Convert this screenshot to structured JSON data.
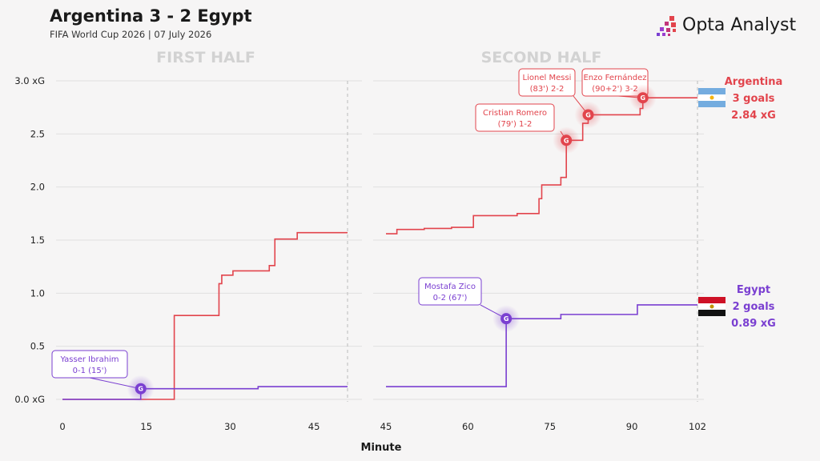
{
  "header": {
    "title": "Argentina 3 - 2 Egypt",
    "subtitle": "FIFA World Cup 2026 | 07 July 2026",
    "brand": "Opta Analyst"
  },
  "colors": {
    "argentina": "#e2444c",
    "egypt": "#7a3fd1",
    "grid": "#e0e0e0",
    "dashed": "#bbbbbb"
  },
  "chart_data": {
    "type": "line",
    "step": true,
    "grid": true,
    "xlabel": "Minute",
    "ylabel": "",
    "ylim": [
      0,
      3
    ],
    "yticks": [
      0,
      0.5,
      1,
      1.5,
      2,
      2.5,
      3
    ],
    "ytick_labels": [
      "0.0 xG",
      "0.5",
      "1.0",
      "1.5",
      "2.0",
      "2.5",
      "3.0 xG"
    ],
    "panels": [
      {
        "name": "FIRST HALF",
        "xlim": [
          0,
          51
        ],
        "xticks": [
          0,
          15,
          30,
          45
        ],
        "end_minute": 51
      },
      {
        "name": "SECOND HALF",
        "xlim": [
          45,
          102
        ],
        "xticks": [
          45,
          60,
          75,
          90,
          102
        ],
        "end_minute": 102
      }
    ],
    "series": [
      {
        "name": "Argentina",
        "goals_label": "3 goals",
        "xg_label": "2.84 xG",
        "first_half": [
          [
            0,
            0
          ],
          [
            20,
            0.79
          ],
          [
            28,
            1.09
          ],
          [
            28.5,
            1.17
          ],
          [
            30.5,
            1.21
          ],
          [
            37,
            1.26
          ],
          [
            38,
            1.51
          ],
          [
            42,
            1.57
          ],
          [
            51,
            1.57
          ]
        ],
        "second_half": [
          [
            45,
            1.56
          ],
          [
            47,
            1.6
          ],
          [
            52,
            1.61
          ],
          [
            57,
            1.62
          ],
          [
            61,
            1.73
          ],
          [
            69,
            1.75
          ],
          [
            73,
            1.89
          ],
          [
            73.5,
            2.02
          ],
          [
            77,
            2.09
          ],
          [
            78,
            2.44
          ],
          [
            80.5,
            2.44
          ],
          [
            81,
            2.6
          ],
          [
            82,
            2.68
          ],
          [
            91.5,
            2.74
          ],
          [
            92,
            2.84
          ],
          [
            102,
            2.84
          ]
        ]
      },
      {
        "name": "Egypt",
        "goals_label": "2 goals",
        "xg_label": "0.89 xG",
        "first_half": [
          [
            0,
            0
          ],
          [
            14,
            0
          ],
          [
            14,
            0.1
          ],
          [
            35,
            0.12
          ],
          [
            51,
            0.12
          ]
        ],
        "second_half": [
          [
            45,
            0.12
          ],
          [
            67,
            0.12
          ],
          [
            67,
            0.76
          ],
          [
            77,
            0.8
          ],
          [
            91,
            0.89
          ],
          [
            102,
            0.89
          ]
        ]
      }
    ],
    "goals": [
      {
        "team": "Egypt",
        "half": 1,
        "minute": 14,
        "xg": 0.1,
        "player": "Yasser Ibrahim",
        "detail": "0-1 (15')"
      },
      {
        "team": "Egypt",
        "half": 2,
        "minute": 67,
        "xg": 0.76,
        "player": "Mostafa Zico",
        "detail": "0-2 (67')"
      },
      {
        "team": "Argentina",
        "half": 2,
        "minute": 78,
        "xg": 2.44,
        "player": "Cristian Romero",
        "detail": "(79') 1-2"
      },
      {
        "team": "Argentina",
        "half": 2,
        "minute": 82,
        "xg": 2.68,
        "player": "Lionel Messi",
        "detail": "(83') 2-2"
      },
      {
        "team": "Argentina",
        "half": 2,
        "minute": 92,
        "xg": 2.84,
        "player": "Enzo Fernández",
        "detail": "(90+2') 3-2"
      }
    ],
    "goal_marker": "G"
  }
}
